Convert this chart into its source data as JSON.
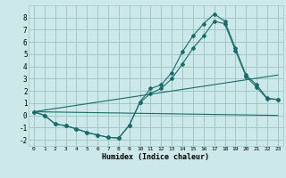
{
  "xlabel": "Humidex (Indice chaleur)",
  "bg_color": "#cce8e8",
  "grid_color": "#a0c8c8",
  "line_color": "#1a6b6b",
  "xlim": [
    -0.5,
    23.5
  ],
  "ylim": [
    -2.5,
    9.0
  ],
  "yticks": [
    -2,
    -1,
    0,
    1,
    2,
    3,
    4,
    5,
    6,
    7,
    8
  ],
  "xticks": [
    0,
    1,
    2,
    3,
    4,
    5,
    6,
    7,
    8,
    9,
    10,
    11,
    12,
    13,
    14,
    15,
    16,
    17,
    18,
    19,
    20,
    21,
    22,
    23
  ],
  "line1_x": [
    0,
    1,
    2,
    3,
    4,
    5,
    6,
    7,
    8,
    9,
    10,
    11,
    12,
    13,
    14,
    15,
    16,
    17,
    18,
    19,
    20,
    21,
    22,
    23
  ],
  "line1_y": [
    0.3,
    0.0,
    -0.7,
    -0.85,
    -1.1,
    -1.4,
    -1.6,
    -1.8,
    -1.85,
    -0.8,
    1.1,
    2.2,
    2.5,
    3.5,
    5.2,
    6.5,
    7.5,
    8.3,
    7.7,
    5.5,
    3.3,
    2.5,
    1.4,
    1.3
  ],
  "line2_x": [
    0,
    1,
    2,
    3,
    4,
    5,
    6,
    7,
    8,
    9,
    10,
    11,
    12,
    13,
    14,
    15,
    16,
    17,
    18,
    19,
    20,
    21,
    22,
    23
  ],
  "line2_y": [
    0.3,
    0.0,
    -0.7,
    -0.85,
    -1.1,
    -1.4,
    -1.6,
    -1.8,
    -1.85,
    -0.8,
    1.05,
    1.8,
    2.2,
    3.0,
    4.2,
    5.5,
    6.5,
    7.7,
    7.5,
    5.3,
    3.2,
    2.3,
    1.35,
    1.3
  ],
  "line3_x": [
    0,
    23
  ],
  "line3_y": [
    0.3,
    3.3
  ],
  "line4_x": [
    0,
    23
  ],
  "line4_y": [
    0.3,
    0.0
  ]
}
